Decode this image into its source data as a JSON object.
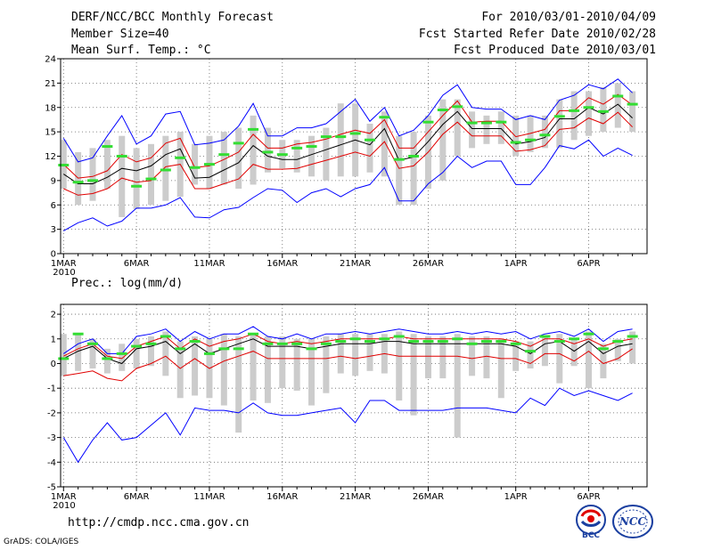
{
  "header": {
    "left": [
      "DERF/NCC/BCC Monthly Forecast",
      "Member Size=40",
      "Mean Surf. Temp.: °C"
    ],
    "right": [
      "For 2010/03/01-2010/04/09",
      "Fcst Started Refer Date 2010/02/28",
      "Fcst Produced Date 2010/03/01"
    ]
  },
  "footer": {
    "url": "http://cmdp.ncc.cma.gov.cn",
    "credit": "GrADS: COLA/IGES",
    "logo_bcc": "BCC",
    "logo_ncc": "NCC"
  },
  "colors": {
    "blue": "#0000ff",
    "red": "#e00000",
    "black": "#000000",
    "green": "#33dd33",
    "grey_bar": "#cccccc"
  },
  "chart_data": [
    {
      "type": "line",
      "title": "Mean Surf. Temp.: °C",
      "xlabel": "",
      "ylabel": "",
      "x_tick_labels": [
        "1MAR",
        "6MAR",
        "11MAR",
        "16MAR",
        "21MAR",
        "26MAR",
        "1APR",
        "6APR"
      ],
      "x_tick_days": [
        1,
        6,
        11,
        16,
        21,
        26,
        32,
        37
      ],
      "x_year_label": "2010",
      "y_ticks": [
        0,
        3,
        6,
        9,
        12,
        15,
        18,
        21,
        24
      ],
      "ylim": [
        0,
        24
      ],
      "grid": true,
      "days": [
        1,
        2,
        3,
        4,
        5,
        6,
        7,
        8,
        9,
        10,
        11,
        12,
        13,
        14,
        15,
        16,
        17,
        18,
        19,
        20,
        21,
        22,
        23,
        24,
        25,
        26,
        27,
        28,
        29,
        30,
        31,
        32,
        33,
        34,
        35,
        36,
        37,
        38,
        39,
        40
      ],
      "series": [
        {
          "name": "max",
          "color": "blue",
          "values": [
            14.2,
            11.3,
            11.8,
            14.5,
            17.0,
            13.5,
            14.5,
            17.2,
            17.5,
            13.4,
            13.6,
            14.0,
            15.7,
            18.5,
            14.5,
            14.5,
            15.5,
            15.5,
            16.0,
            17.5,
            19.0,
            16.3,
            18.0,
            14.5,
            15.2,
            17.0,
            19.5,
            20.8,
            18.0,
            17.8,
            17.8,
            16.5,
            17.0,
            16.5,
            18.9,
            19.5,
            20.8,
            20.3,
            21.5,
            19.8
          ]
        },
        {
          "name": "upper",
          "color": "red",
          "values": [
            11.0,
            9.3,
            9.5,
            10.2,
            12.2,
            11.3,
            11.8,
            13.6,
            14.2,
            10.6,
            10.8,
            11.6,
            12.5,
            14.7,
            13.0,
            13.0,
            13.5,
            13.7,
            14.1,
            14.7,
            15.2,
            14.8,
            16.5,
            13.0,
            13.0,
            15.0,
            17.0,
            18.8,
            16.2,
            16.3,
            16.3,
            14.4,
            14.8,
            15.3,
            17.6,
            17.6,
            19.2,
            18.4,
            19.6,
            18.3
          ]
        },
        {
          "name": "mean",
          "color": "black",
          "values": [
            9.8,
            8.6,
            8.6,
            9.4,
            10.5,
            10.2,
            10.8,
            12.2,
            12.9,
            9.3,
            9.4,
            10.3,
            11.2,
            13.3,
            12.0,
            11.6,
            11.6,
            12.2,
            12.8,
            13.4,
            14.0,
            13.4,
            15.4,
            11.5,
            11.9,
            13.8,
            15.9,
            17.5,
            15.4,
            15.4,
            15.4,
            13.5,
            13.8,
            14.3,
            16.6,
            16.6,
            18.0,
            17.2,
            18.4,
            16.7
          ]
        },
        {
          "name": "lower",
          "color": "red",
          "values": [
            8.0,
            7.2,
            7.4,
            8.0,
            9.3,
            8.8,
            9.0,
            10.7,
            11.0,
            8.0,
            8.0,
            8.6,
            9.2,
            11.0,
            10.4,
            10.4,
            10.5,
            11.0,
            11.5,
            12.0,
            12.5,
            12.0,
            13.8,
            10.5,
            10.8,
            12.5,
            14.7,
            16.2,
            14.5,
            14.5,
            14.5,
            12.6,
            12.8,
            13.3,
            15.3,
            15.5,
            16.7,
            16.0,
            17.4,
            15.6
          ]
        },
        {
          "name": "min",
          "color": "blue",
          "values": [
            2.8,
            3.8,
            4.4,
            3.4,
            4.0,
            5.6,
            5.6,
            6.0,
            6.9,
            4.5,
            4.4,
            5.4,
            5.7,
            6.9,
            8.0,
            7.8,
            6.3,
            7.5,
            8.0,
            7.0,
            8.0,
            8.5,
            10.6,
            6.5,
            6.5,
            8.6,
            10.0,
            12.0,
            10.6,
            11.4,
            11.4,
            8.5,
            8.5,
            10.6,
            13.3,
            12.9,
            14.0,
            12.0,
            13.0,
            12.1
          ]
        }
      ],
      "obs_range": [
        [
          8.0,
          14.0
        ],
        [
          6.0,
          12.5
        ],
        [
          6.5,
          13.0
        ],
        [
          8.0,
          14.0
        ],
        [
          4.5,
          14.5
        ],
        [
          5.5,
          13.0
        ],
        [
          6.0,
          13.5
        ],
        [
          6.5,
          14.5
        ],
        [
          7.0,
          15.0
        ],
        [
          8.5,
          13.5
        ],
        [
          8.0,
          14.5
        ],
        [
          8.5,
          15.0
        ],
        [
          8.0,
          15.5
        ],
        [
          8.5,
          17.0
        ],
        [
          10.0,
          15.5
        ],
        [
          10.5,
          14.0
        ],
        [
          10.0,
          14.0
        ],
        [
          9.5,
          14.5
        ],
        [
          9.0,
          15.5
        ],
        [
          9.5,
          18.5
        ],
        [
          9.5,
          18.5
        ],
        [
          10.0,
          16.0
        ],
        [
          9.5,
          17.5
        ],
        [
          6.0,
          14.5
        ],
        [
          6.0,
          15.0
        ],
        [
          8.0,
          17.0
        ],
        [
          9.0,
          19.0
        ],
        [
          12.0,
          19.0
        ],
        [
          13.0,
          17.5
        ],
        [
          13.5,
          17.0
        ],
        [
          13.5,
          17.5
        ],
        [
          12.0,
          17.0
        ],
        [
          12.5,
          17.0
        ],
        [
          13.0,
          17.0
        ],
        [
          13.0,
          19.0
        ],
        [
          14.0,
          20.0
        ],
        [
          14.5,
          20.0
        ],
        [
          15.0,
          20.5
        ],
        [
          15.5,
          21.0
        ],
        [
          15.0,
          20.0
        ]
      ],
      "obs_mark": [
        10.9,
        8.8,
        9.0,
        13.2,
        12.0,
        8.3,
        9.2,
        10.3,
        11.8,
        10.6,
        11.0,
        12.2,
        13.6,
        15.3,
        12.5,
        12.2,
        13.0,
        13.2,
        14.4,
        14.4,
        14.8,
        14.0,
        16.8,
        11.6,
        12.0,
        16.2,
        17.7,
        18.1,
        16.1,
        16.1,
        16.2,
        13.7,
        14.0,
        14.6,
        16.9,
        17.6,
        18.0,
        17.5,
        19.4,
        18.4
      ]
    },
    {
      "type": "line",
      "title": "Prec.: log(mm/d)",
      "xlabel": "",
      "ylabel": "",
      "x_tick_labels": [
        "1MAR",
        "6MAR",
        "11MAR",
        "16MAR",
        "21MAR",
        "26MAR",
        "1APR",
        "6APR"
      ],
      "x_tick_days": [
        1,
        6,
        11,
        16,
        21,
        26,
        32,
        37
      ],
      "x_year_label": "2010",
      "y_ticks": [
        -5,
        -4,
        -3,
        -2,
        -1,
        0,
        1,
        2
      ],
      "ylim": [
        -5,
        2.4
      ],
      "grid": true,
      "days": [
        1,
        2,
        3,
        4,
        5,
        6,
        7,
        8,
        9,
        10,
        11,
        12,
        13,
        14,
        15,
        16,
        17,
        18,
        19,
        20,
        21,
        22,
        23,
        24,
        25,
        26,
        27,
        28,
        29,
        30,
        31,
        32,
        33,
        34,
        35,
        36,
        37,
        38,
        39,
        40
      ],
      "series": [
        {
          "name": "max",
          "color": "blue",
          "values": [
            0.4,
            0.8,
            1.0,
            0.4,
            0.4,
            1.1,
            1.2,
            1.4,
            0.9,
            1.3,
            1.0,
            1.2,
            1.2,
            1.5,
            1.1,
            1.0,
            1.2,
            1.0,
            1.2,
            1.2,
            1.3,
            1.2,
            1.3,
            1.4,
            1.3,
            1.2,
            1.2,
            1.3,
            1.2,
            1.3,
            1.2,
            1.3,
            1.0,
            1.2,
            1.3,
            1.1,
            1.4,
            0.9,
            1.3,
            1.4
          ]
        },
        {
          "name": "upper",
          "color": "red",
          "values": [
            0.3,
            0.6,
            0.8,
            0.3,
            0.2,
            0.7,
            0.9,
            1.1,
            0.6,
            1.0,
            0.7,
            0.9,
            1.0,
            1.2,
            0.9,
            0.8,
            0.9,
            0.8,
            0.9,
            1.0,
            1.0,
            1.0,
            1.0,
            1.1,
            1.0,
            1.0,
            1.0,
            1.0,
            1.0,
            1.0,
            1.0,
            0.9,
            0.7,
            1.0,
            1.0,
            0.8,
            1.0,
            0.7,
            0.9,
            1.0
          ]
        },
        {
          "name": "mean",
          "color": "black",
          "values": [
            0.2,
            0.5,
            0.7,
            0.2,
            0.0,
            0.6,
            0.7,
            0.9,
            0.4,
            0.8,
            0.4,
            0.6,
            0.8,
            1.0,
            0.7,
            0.7,
            0.7,
            0.6,
            0.7,
            0.8,
            0.8,
            0.8,
            0.9,
            0.9,
            0.8,
            0.8,
            0.8,
            0.8,
            0.8,
            0.8,
            0.8,
            0.7,
            0.4,
            0.8,
            0.9,
            0.5,
            0.9,
            0.4,
            0.7,
            0.8
          ]
        },
        {
          "name": "lower",
          "color": "red",
          "values": [
            -0.5,
            -0.4,
            -0.3,
            -0.6,
            -0.7,
            -0.2,
            0.0,
            0.3,
            -0.2,
            0.2,
            -0.2,
            0.1,
            0.3,
            0.5,
            0.2,
            0.2,
            0.2,
            0.2,
            0.2,
            0.3,
            0.2,
            0.3,
            0.4,
            0.3,
            0.3,
            0.3,
            0.3,
            0.3,
            0.2,
            0.3,
            0.2,
            0.2,
            0.0,
            0.4,
            0.4,
            0.1,
            0.5,
            0.0,
            0.2,
            0.6
          ]
        },
        {
          "name": "min",
          "color": "blue",
          "values": [
            -3.0,
            -4.0,
            -3.1,
            -2.4,
            -3.1,
            -3.0,
            -2.5,
            -2.0,
            -2.9,
            -1.8,
            -1.9,
            -1.9,
            -2.0,
            -1.6,
            -2.0,
            -2.1,
            -2.1,
            -2.0,
            -1.9,
            -1.8,
            -2.4,
            -1.5,
            -1.5,
            -1.9,
            -1.9,
            -1.9,
            -1.9,
            -1.8,
            -1.8,
            -1.8,
            -1.9,
            -2.0,
            -1.4,
            -1.7,
            -1.0,
            -1.3,
            -1.1,
            -1.3,
            -1.5,
            -1.2
          ]
        }
      ],
      "obs_range": [
        [
          -0.5,
          1.2
        ],
        [
          -0.3,
          1.2
        ],
        [
          -0.2,
          1.0
        ],
        [
          -0.4,
          0.6
        ],
        [
          -0.3,
          0.8
        ],
        [
          -0.2,
          1.0
        ],
        [
          -0.1,
          1.1
        ],
        [
          -0.5,
          1.3
        ],
        [
          -1.4,
          0.9
        ],
        [
          -1.3,
          1.1
        ],
        [
          -1.4,
          1.0
        ],
        [
          -1.7,
          1.2
        ],
        [
          -2.8,
          1.1
        ],
        [
          -1.5,
          1.2
        ],
        [
          -1.6,
          1.1
        ],
        [
          -1.0,
          1.1
        ],
        [
          -1.1,
          1.0
        ],
        [
          -1.7,
          1.0
        ],
        [
          -1.2,
          1.1
        ],
        [
          -0.4,
          1.2
        ],
        [
          -0.5,
          1.2
        ],
        [
          -0.3,
          1.2
        ],
        [
          -0.4,
          1.2
        ],
        [
          -1.5,
          1.3
        ],
        [
          -2.1,
          1.2
        ],
        [
          -0.6,
          1.1
        ],
        [
          -0.6,
          1.1
        ],
        [
          -3.0,
          1.2
        ],
        [
          -0.5,
          1.1
        ],
        [
          -0.6,
          1.1
        ],
        [
          -1.4,
          1.0
        ],
        [
          -0.3,
          0.9
        ],
        [
          -0.2,
          0.9
        ],
        [
          -0.1,
          1.1
        ],
        [
          -0.8,
          1.2
        ],
        [
          -0.1,
          1.0
        ],
        [
          -1.0,
          1.3
        ],
        [
          -0.6,
          0.8
        ],
        [
          0.1,
          1.0
        ],
        [
          0.0,
          1.3
        ]
      ],
      "obs_mark": [
        0.2,
        1.2,
        0.8,
        0.2,
        0.4,
        0.7,
        0.8,
        1.1,
        0.6,
        0.9,
        0.4,
        0.6,
        0.6,
        1.2,
        0.8,
        0.8,
        0.8,
        0.6,
        0.8,
        0.9,
        1.0,
        0.9,
        1.0,
        1.1,
        0.9,
        0.9,
        0.9,
        1.0,
        0.8,
        0.9,
        0.9,
        0.8,
        0.5,
        1.1,
        0.9,
        1.0,
        1.2,
        0.6,
        0.9,
        1.1
      ]
    }
  ]
}
